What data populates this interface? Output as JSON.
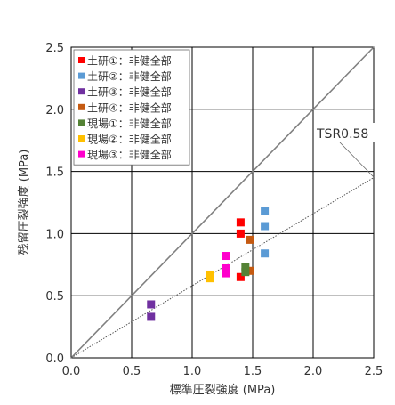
{
  "chart_data": {
    "type": "scatter",
    "title": "",
    "xlabel": "標準圧裂強度 (MPa)",
    "ylabel": "残留圧裂強度 (MPa)",
    "xlim": [
      0.0,
      2.5
    ],
    "ylim": [
      0.0,
      2.5
    ],
    "xticks": [
      "0.0",
      "0.5",
      "1.0",
      "1.5",
      "2.0",
      "2.5"
    ],
    "yticks": [
      "0.0",
      "0.5",
      "1.0",
      "1.5",
      "2.0",
      "2.5"
    ],
    "grid": true,
    "legend_position": "top-left",
    "series": [
      {
        "name": "土研①：非健全部",
        "color": "#ff0000",
        "x": [
          1.4,
          1.4,
          1.4
        ],
        "y": [
          1.09,
          1.0,
          0.65
        ]
      },
      {
        "name": "土研②：非健全部",
        "color": "#5b9bd5",
        "x": [
          1.6,
          1.6,
          1.6
        ],
        "y": [
          1.18,
          1.06,
          0.84
        ]
      },
      {
        "name": "土研③：非健全部",
        "color": "#7030a0",
        "x": [
          0.66,
          0.66
        ],
        "y": [
          0.43,
          0.33
        ]
      },
      {
        "name": "土研④：非健全部",
        "color": "#c55a11",
        "x": [
          1.48,
          1.48
        ],
        "y": [
          0.95,
          0.7
        ]
      },
      {
        "name": "現場①：非健全部",
        "color": "#548235",
        "x": [
          1.44,
          1.44
        ],
        "y": [
          0.73,
          0.69
        ]
      },
      {
        "name": "現場②：非健全部",
        "color": "#ffc000",
        "x": [
          1.15,
          1.15
        ],
        "y": [
          0.67,
          0.64
        ]
      },
      {
        "name": "現場③：非健全部",
        "color": "#ff00cc",
        "x": [
          1.28,
          1.28,
          1.28
        ],
        "y": [
          0.82,
          0.72,
          0.68
        ]
      }
    ],
    "reference_lines": [
      {
        "kind": "solid",
        "slope": 1.0
      },
      {
        "kind": "dotted",
        "slope": 0.58,
        "label": "TSR0.58"
      }
    ],
    "annotation": "TSR0.58"
  }
}
